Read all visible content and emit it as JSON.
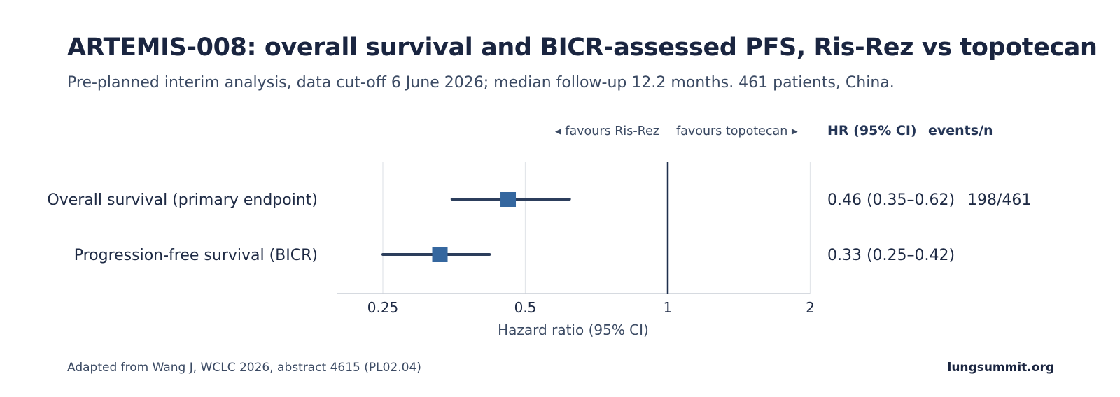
{
  "header": {
    "title": "ARTEMIS-008: overall survival and BICR-assessed PFS, Ris-Rez vs topotecan",
    "subtitle": "Pre-planned interim analysis, data cut-off 6 June 2026; median follow-up 12.2 months. 461 patients, China."
  },
  "footer": {
    "source": "Adapted from Wang J, WCLC 2026, abstract 4615 (PL02.04)",
    "site": "lungsummit.org"
  },
  "colors": {
    "marker": "#35679f",
    "ci_line": "#2c3e5c",
    "reference_line": "#1e2f4d",
    "grid": "#e3e6ea",
    "axis": "#c9ced6",
    "text": "#1e2a44"
  },
  "chart_data": {
    "type": "forest",
    "xlabel": "Hazard ratio (95% CI)",
    "xscale": "log2",
    "xlim": [
      0.2,
      2
    ],
    "xticks": [
      0.25,
      0.5,
      1,
      2
    ],
    "xtick_labels": [
      "0.25",
      "0.5",
      "1",
      "2"
    ],
    "reference_line": 1,
    "favours_left": "◂ favours Ris-Rez",
    "favours_right": "favours topotecan ▸",
    "column_headers": [
      "HR (95% CI)",
      "events/n"
    ],
    "rows": [
      {
        "label": "Overall survival (primary endpoint)",
        "hr": 0.46,
        "ci_low": 0.35,
        "ci_high": 0.62,
        "hr_text": "0.46 (0.35–0.62)",
        "events_text": "198/461"
      },
      {
        "label": "Progression-free survival (BICR)",
        "hr": 0.33,
        "ci_low": 0.25,
        "ci_high": 0.42,
        "hr_text": "0.33 (0.25–0.42)",
        "events_text": ""
      }
    ]
  }
}
